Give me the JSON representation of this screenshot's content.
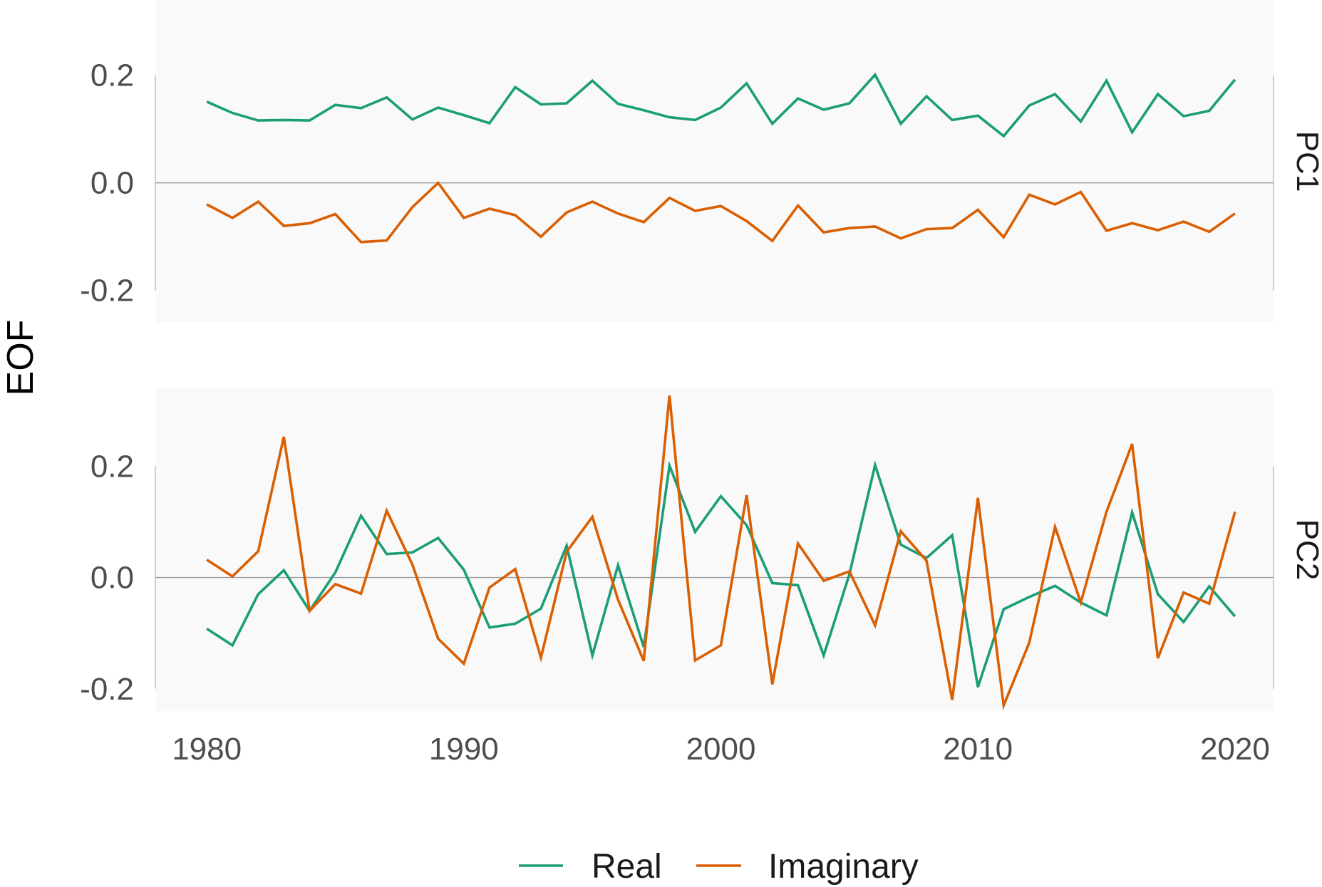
{
  "chart_data": {
    "type": "line",
    "ylabel": "EOF",
    "xlim": [
      1978,
      2021.5
    ],
    "x_ticks": [
      "1980",
      "1990",
      "2000",
      "2010",
      "2020"
    ],
    "x": [
      1980,
      1981,
      1982,
      1983,
      1984,
      1985,
      1986,
      1987,
      1988,
      1989,
      1990,
      1991,
      1992,
      1993,
      1994,
      1995,
      1996,
      1997,
      1998,
      1999,
      2000,
      2001,
      2002,
      2003,
      2004,
      2005,
      2006,
      2007,
      2008,
      2009,
      2010,
      2011,
      2012,
      2013,
      2014,
      2015,
      2016,
      2017,
      2018,
      2019,
      2020
    ],
    "legend": {
      "position": "bottom"
    },
    "colors": {
      "Real": "#1b9e77",
      "Imaginary": "#d95f02"
    },
    "panels": [
      {
        "strip_label": "PC1",
        "ylim": [
          -0.26,
          0.34
        ],
        "y_ticks": [
          "0.2",
          "0.0",
          "-0.2"
        ],
        "series": [
          {
            "name": "Real",
            "values": [
              0.151,
              0.13,
              0.116,
              0.117,
              0.116,
              0.145,
              0.139,
              0.159,
              0.118,
              0.14,
              0.126,
              0.111,
              0.178,
              0.146,
              0.148,
              0.19,
              0.147,
              0.135,
              0.122,
              0.117,
              0.14,
              0.185,
              0.11,
              0.157,
              0.136,
              0.148,
              0.201,
              0.11,
              0.161,
              0.117,
              0.125,
              0.087,
              0.144,
              0.165,
              0.114,
              0.19,
              0.094,
              0.165,
              0.124,
              0.134,
              0.192
            ]
          },
          {
            "name": "Imaginary",
            "values": [
              -0.04,
              -0.065,
              -0.035,
              -0.08,
              -0.075,
              -0.058,
              -0.11,
              -0.107,
              -0.045,
              0.0,
              -0.065,
              -0.048,
              -0.06,
              -0.1,
              -0.055,
              -0.035,
              -0.057,
              -0.073,
              -0.028,
              -0.052,
              -0.043,
              -0.071,
              -0.108,
              -0.042,
              -0.092,
              -0.084,
              -0.081,
              -0.103,
              -0.086,
              -0.084,
              -0.05,
              -0.101,
              -0.022,
              -0.04,
              -0.017,
              -0.089,
              -0.075,
              -0.088,
              -0.072,
              -0.091,
              -0.057
            ]
          }
        ]
      },
      {
        "strip_label": "PC2",
        "ylim": [
          -0.24,
          0.34
        ],
        "y_ticks": [
          "0.2",
          "0.0",
          "-0.2"
        ],
        "series": [
          {
            "name": "Real",
            "values": [
              -0.092,
              -0.122,
              -0.03,
              0.013,
              -0.06,
              0.009,
              0.111,
              0.042,
              0.045,
              0.071,
              0.014,
              -0.09,
              -0.083,
              -0.056,
              0.057,
              -0.14,
              0.022,
              -0.125,
              0.201,
              0.082,
              0.146,
              0.094,
              -0.01,
              -0.014,
              -0.14,
              0.006,
              0.202,
              0.059,
              0.035,
              0.076,
              -0.197,
              -0.057,
              -0.035,
              -0.015,
              -0.045,
              -0.068,
              0.117,
              -0.03,
              -0.08,
              -0.016,
              -0.07
            ]
          },
          {
            "name": "Imaginary",
            "values": [
              0.032,
              0.002,
              0.047,
              0.253,
              -0.06,
              -0.012,
              -0.029,
              0.12,
              0.023,
              -0.11,
              -0.155,
              -0.018,
              0.015,
              -0.144,
              0.046,
              0.109,
              -0.04,
              -0.15,
              0.327,
              -0.149,
              -0.122,
              0.148,
              -0.192,
              0.061,
              -0.006,
              0.011,
              -0.086,
              0.083,
              0.03,
              -0.22,
              0.143,
              -0.23,
              -0.117,
              0.091,
              -0.045,
              0.118,
              0.24,
              -0.145,
              -0.027,
              -0.047,
              0.118
            ]
          }
        ]
      }
    ]
  }
}
